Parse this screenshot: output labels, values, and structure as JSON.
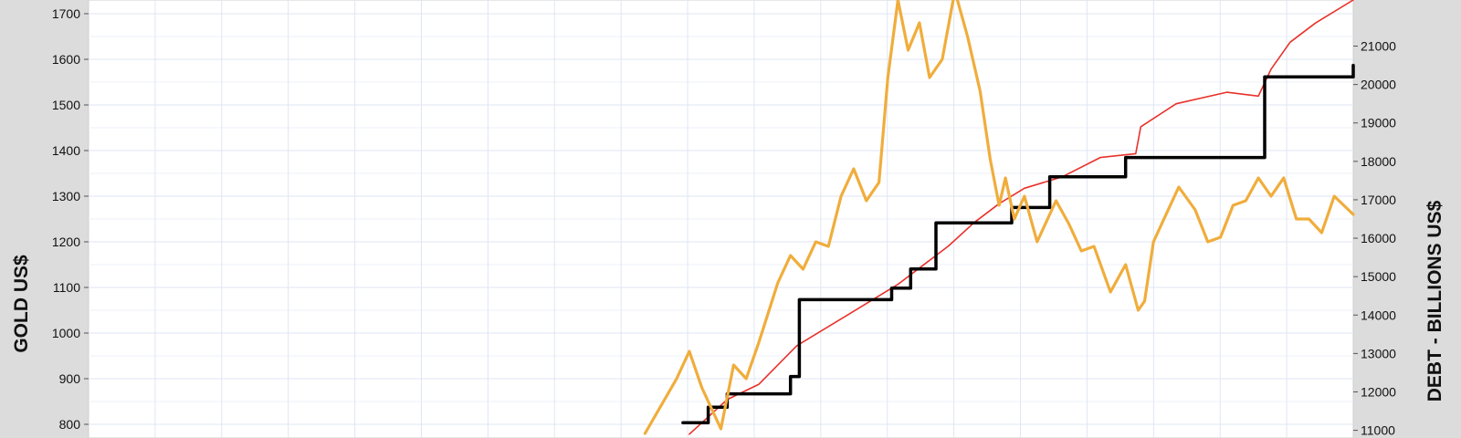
{
  "chart_data": {
    "type": "line",
    "ylabel": "GOLD US$",
    "y2label": "DEBT - BILLIONS US$",
    "ylim": [
      770,
      1730
    ],
    "y2lim": [
      10800,
      22200
    ],
    "y_ticks": [
      800,
      900,
      1000,
      1100,
      1200,
      1300,
      1400,
      1500,
      1600,
      1700
    ],
    "y2_ticks": [
      11000,
      12000,
      13000,
      14000,
      15000,
      16000,
      17000,
      18000,
      19000,
      20000,
      21000
    ],
    "grid": true,
    "x_tick_count": 18,
    "colors": {
      "gold": "#f0ad3c",
      "debt": "#e8322b",
      "debt_limit": "#000000",
      "grid": "#dfe6f3",
      "plot_border": "#cfcfcf",
      "side_panel": "#dcdcdc"
    },
    "series": [
      {
        "name": "",
        "axis": "left",
        "color": "#f0ad3c",
        "x": [
          0.0,
          0.44,
          0.465,
          0.475,
          0.485,
          0.5,
          0.51,
          0.52,
          0.53,
          0.545,
          0.555,
          0.565,
          0.575,
          0.585,
          0.595,
          0.605,
          0.615,
          0.625,
          0.632,
          0.64,
          0.648,
          0.657,
          0.665,
          0.675,
          0.685,
          0.695,
          0.705,
          0.713,
          0.72,
          0.725,
          0.732,
          0.74,
          0.75,
          0.765,
          0.775,
          0.785,
          0.795,
          0.808,
          0.82,
          0.83,
          0.835,
          0.842,
          0.852,
          0.862,
          0.875,
          0.885,
          0.895,
          0.905,
          0.915,
          0.925,
          0.935,
          0.945,
          0.955,
          0.965,
          0.975,
          0.985,
          1.0
        ],
        "values": [
          null,
          780,
          900,
          960,
          880,
          790,
          930,
          900,
          980,
          1110,
          1170,
          1140,
          1200,
          1190,
          1300,
          1360,
          1290,
          1330,
          1560,
          1730,
          1620,
          1680,
          1560,
          1600,
          1750,
          1650,
          1530,
          1380,
          1280,
          1340,
          1250,
          1300,
          1200,
          1290,
          1240,
          1180,
          1190,
          1090,
          1150,
          1050,
          1070,
          1200,
          1260,
          1320,
          1270,
          1200,
          1210,
          1280,
          1290,
          1340,
          1300,
          1340,
          1250,
          1250,
          1220,
          1300,
          1260
        ]
      },
      {
        "name": "",
        "axis": "right",
        "color": "#e8322b",
        "x": [
          0.0,
          0.475,
          0.505,
          0.53,
          0.56,
          0.6,
          0.64,
          0.68,
          0.7,
          0.72,
          0.74,
          0.77,
          0.8,
          0.828,
          0.832,
          0.86,
          0.9,
          0.925,
          0.935,
          0.95,
          0.97,
          1.0
        ],
        "values": [
          null,
          10900,
          11800,
          12200,
          13200,
          14000,
          14800,
          15800,
          16400,
          16900,
          17300,
          17600,
          18100,
          18200,
          18900,
          19500,
          19800,
          19700,
          20400,
          21100,
          21600,
          22200
        ]
      },
      {
        "name": "",
        "axis": "right",
        "color": "#000000",
        "step": true,
        "x": [
          0.0,
          0.47,
          0.49,
          0.505,
          0.555,
          0.562,
          0.635,
          0.65,
          0.67,
          0.73,
          0.76,
          0.82,
          0.93,
          1.0
        ],
        "values": [
          null,
          11200,
          11600,
          11950,
          12400,
          14400,
          14700,
          15200,
          16400,
          16800,
          17600,
          18100,
          20200,
          20500
        ]
      }
    ]
  }
}
